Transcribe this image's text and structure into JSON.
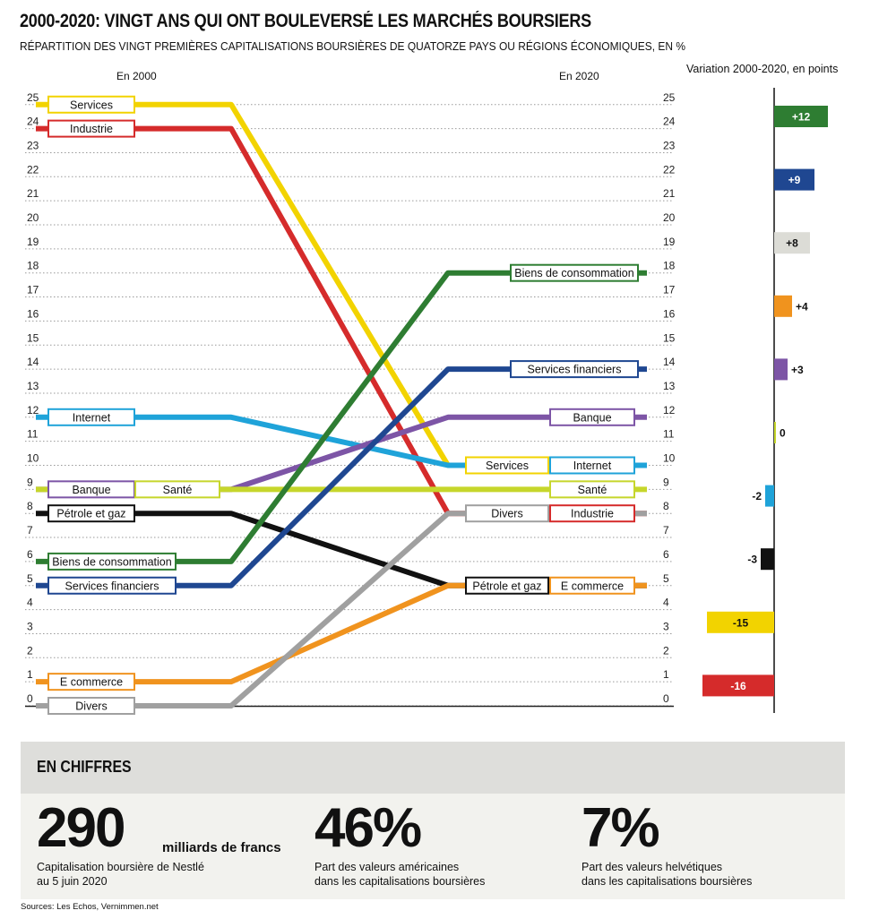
{
  "header": {
    "title": "2000-2020: VINGT ANS QUI ONT BOULEVERSÉ LES MARCHÉS BOURSIERS",
    "subtitle": "RÉPARTITION DES VINGT PREMIÈRES CAPITALISATIONS BOURSIÈRES DE QUATORZE PAYS OU RÉGIONS ÉCONOMIQUES, EN %",
    "col_2000": "En 2000",
    "col_2020": "En 2020",
    "variation_title": "Variation 2000-2020, en points"
  },
  "chart_data": [
    {
      "type": "line",
      "subtype": "slope",
      "x": [
        "2000",
        "2020"
      ],
      "yticks": [
        "0",
        "1",
        "2",
        "3",
        "4",
        "5",
        "6",
        "7",
        "8",
        "9",
        "10",
        "11",
        "12",
        "13",
        "14",
        "15",
        "16",
        "17",
        "18",
        "19",
        "20",
        "21",
        "22",
        "23",
        "24",
        "25"
      ],
      "ylim": [
        0,
        25
      ],
      "grid": true,
      "series": [
        {
          "name": "Services",
          "values": [
            25,
            10
          ],
          "color": "#f2d300"
        },
        {
          "name": "Industrie",
          "values": [
            24,
            8
          ],
          "color": "#d52b2b"
        },
        {
          "name": "Internet",
          "values": [
            12,
            10
          ],
          "color": "#1fa3d9"
        },
        {
          "name": "Banque",
          "values": [
            9,
            12
          ],
          "color": "#7d55a6"
        },
        {
          "name": "Santé",
          "values": [
            9,
            9
          ],
          "color": "#c6d62b"
        },
        {
          "name": "Pétrole et gaz",
          "values": [
            8,
            5
          ],
          "color": "#111111"
        },
        {
          "name": "Biens de consommation",
          "values": [
            6,
            18
          ],
          "color": "#2e7d32"
        },
        {
          "name": "Services financiers",
          "values": [
            5,
            14
          ],
          "color": "#1f4791"
        },
        {
          "name": "E commerce",
          "values": [
            1,
            5
          ],
          "color": "#f0931e"
        },
        {
          "name": "Divers",
          "values": [
            0,
            8
          ],
          "color": "#a0a0a0"
        }
      ]
    },
    {
      "type": "bar",
      "orientation": "horizontal",
      "title": "Variation 2000-2020, en points",
      "categories": [
        "Biens de consommation",
        "Services financiers",
        "Divers",
        "E commerce",
        "Banque",
        "Santé",
        "Internet",
        "Pétrole et gaz",
        "Services",
        "Industrie"
      ],
      "values": [
        12,
        9,
        8,
        4,
        3,
        0,
        -2,
        -3,
        -15,
        -16
      ],
      "labels": [
        "+12",
        "+9",
        "+8",
        "+4",
        "+3",
        "0",
        "-2",
        "-3",
        "-15",
        "-16"
      ],
      "colors": [
        "#2e7d32",
        "#1f4791",
        "#dcdcd6",
        "#f0931e",
        "#7d55a6",
        "#c6d62b",
        "#1fa3d9",
        "#111111",
        "#f2d300",
        "#d52b2b"
      ]
    }
  ],
  "facts": {
    "title": "EN CHIFFRES",
    "items": [
      {
        "value": "290",
        "unit": "milliards de francs",
        "label_line1": "Capitalisation boursière de Nestlé",
        "label_line2": "au 5 juin 2020"
      },
      {
        "value": "46%",
        "label_line1": "Part des valeurs américaines",
        "label_line2": "dans les capitalisations boursières"
      },
      {
        "value": "7%",
        "label_line1": "Part des valeurs helvétiques",
        "label_line2": "dans les capitalisations boursières"
      }
    ]
  },
  "sources": "Sources: Les Echos, Vernimmen.net"
}
